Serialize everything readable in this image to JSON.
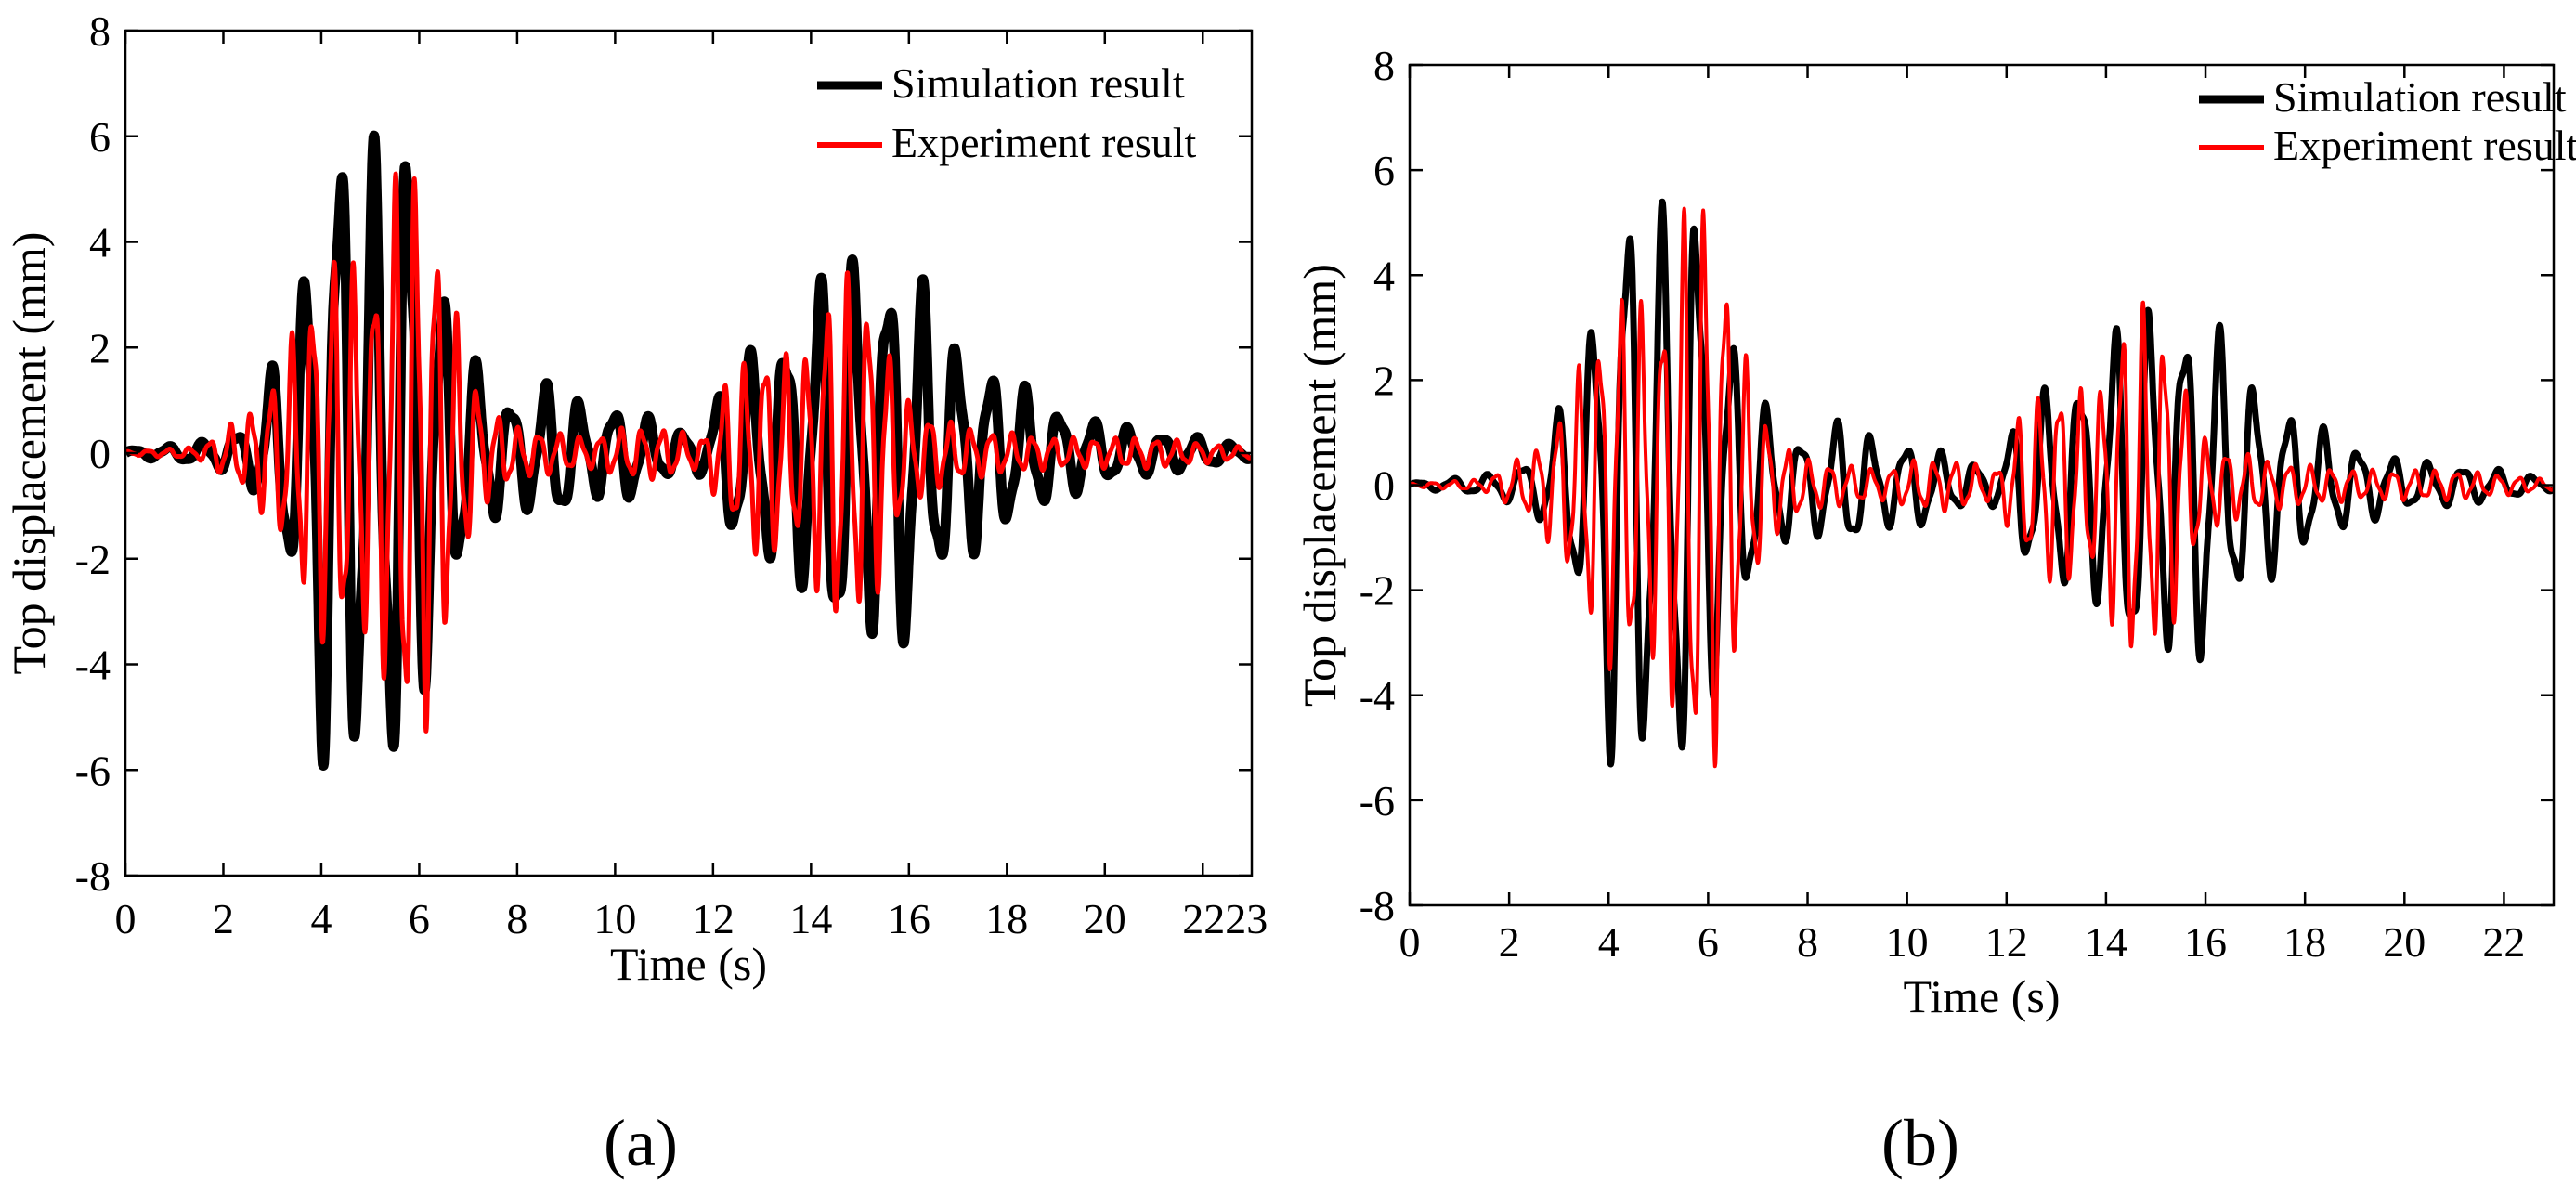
{
  "figure": {
    "panels": [
      "a",
      "b"
    ]
  },
  "chart_data": [
    {
      "type": "line",
      "panel_label": "(a)",
      "xlabel": "Time (s)",
      "ylabel": "Top displacement (mm)",
      "xlim": [
        0,
        23
      ],
      "ylim": [
        -8,
        8
      ],
      "xticks": [
        "0",
        "2",
        "4",
        "6",
        "8",
        "10",
        "12",
        "14",
        "16",
        "18",
        "20",
        "2223"
      ],
      "yticks": [
        "-8",
        "-6",
        "-4",
        "-2",
        "0",
        "2",
        "4",
        "6",
        "8"
      ],
      "legend_position": "top-right",
      "series": [
        {
          "name": "Simulation result",
          "color": "#000000",
          "envelope": {
            "t": [
              0,
              1.5,
              2.5,
              3.0,
              3.5,
              4.2,
              5.0,
              5.7,
              6.2,
              6.8,
              7.3,
              8.0,
              8.8,
              9.5,
              10.2,
              11.0,
              11.8,
              12.3,
              13.0,
              13.8,
              14.5,
              15.2,
              16.0,
              16.6,
              17.2,
              18.0,
              19.0,
              20.0,
              21.0,
              22.0,
              23.0
            ],
            "amp": [
              0.05,
              0.2,
              0.5,
              1.7,
              2.8,
              6.9,
              5.9,
              6.9,
              4.0,
              2.5,
              1.5,
              1.0,
              1.5,
              0.8,
              1.0,
              0.5,
              0.4,
              1.7,
              2.1,
              2.6,
              4.2,
              3.5,
              4.0,
              2.6,
              2.0,
              1.5,
              0.9,
              0.6,
              0.4,
              0.3,
              0.1
            ]
          },
          "period_s": 0.7,
          "linewidth": 11
        },
        {
          "name": "Experiment result",
          "color": "#ff0000",
          "envelope": {
            "t": [
              0,
              1.5,
              2.5,
              3.0,
              3.5,
              4.2,
              5.0,
              5.7,
              6.2,
              6.8,
              7.3,
              8.0,
              8.8,
              9.5,
              10.2,
              11.0,
              11.8,
              12.3,
              13.0,
              13.8,
              14.5,
              15.2,
              16.0,
              16.6,
              17.2,
              18.0,
              19.0,
              20.0,
              21.0,
              22.0,
              23.0
            ],
            "amp": [
              0.03,
              0.12,
              0.8,
              1.4,
              2.5,
              4.0,
              3.5,
              6.1,
              5.2,
              2.5,
              1.0,
              0.5,
              0.4,
              0.3,
              0.5,
              0.5,
              0.3,
              1.5,
              2.1,
              1.8,
              3.6,
              3.1,
              1.0,
              0.7,
              0.5,
              0.4,
              0.3,
              0.3,
              0.3,
              0.2,
              0.1
            ]
          },
          "period_s": 0.42,
          "linewidth": 5
        }
      ]
    },
    {
      "type": "line",
      "panel_label": "(b)",
      "xlabel": "Time (s)",
      "ylabel": "Top displacement (mm)",
      "xlim": [
        0,
        23
      ],
      "ylim": [
        -8,
        8
      ],
      "xticks": [
        "0",
        "2",
        "4",
        "6",
        "8",
        "10",
        "12",
        "14",
        "16",
        "18",
        "20",
        "22"
      ],
      "yticks": [
        "-8",
        "-6",
        "-4",
        "-2",
        "0",
        "2",
        "4",
        "6",
        "8"
      ],
      "legend_position": "top-right",
      "series": [
        {
          "name": "Simulation result",
          "color": "#000000",
          "envelope": {
            "t": [
              0,
              1.5,
              2.5,
              3.0,
              3.5,
              4.2,
              5.0,
              5.7,
              6.2,
              6.8,
              7.3,
              8.0,
              8.8,
              9.5,
              10.2,
              11.0,
              11.8,
              12.3,
              13.0,
              13.8,
              14.5,
              15.2,
              16.0,
              16.6,
              17.2,
              18.0,
              19.0,
              20.0,
              21.0,
              22.0,
              23.0
            ],
            "amp": [
              0.05,
              0.2,
              0.5,
              1.5,
              2.5,
              6.2,
              5.3,
              6.2,
              3.6,
              2.3,
              1.3,
              0.9,
              1.4,
              0.8,
              0.9,
              0.5,
              0.4,
              1.6,
              2.0,
              2.3,
              3.8,
              3.2,
              3.7,
              2.4,
              1.9,
              1.3,
              0.8,
              0.5,
              0.4,
              0.3,
              0.1
            ]
          },
          "period_s": 0.7,
          "linewidth": 7
        },
        {
          "name": "Experiment result",
          "color": "#ff0000",
          "envelope": {
            "t": [
              0,
              1.5,
              2.5,
              3.0,
              3.5,
              4.2,
              5.0,
              5.7,
              6.2,
              6.8,
              7.3,
              8.0,
              8.8,
              9.5,
              10.2,
              11.0,
              11.8,
              12.3,
              13.0,
              13.8,
              14.5,
              15.2,
              16.0,
              16.6,
              17.2,
              18.0,
              19.0,
              20.0,
              21.0,
              22.0,
              23.0
            ],
            "amp": [
              0.03,
              0.12,
              0.7,
              1.4,
              2.5,
              3.9,
              3.4,
              6.1,
              5.3,
              2.3,
              1.0,
              0.5,
              0.4,
              0.3,
              0.5,
              0.5,
              0.3,
              1.5,
              2.0,
              1.8,
              3.7,
              3.1,
              0.9,
              0.7,
              0.5,
              0.4,
              0.3,
              0.3,
              0.3,
              0.2,
              0.1
            ]
          },
          "period_s": 0.42,
          "linewidth": 4
        }
      ]
    }
  ]
}
